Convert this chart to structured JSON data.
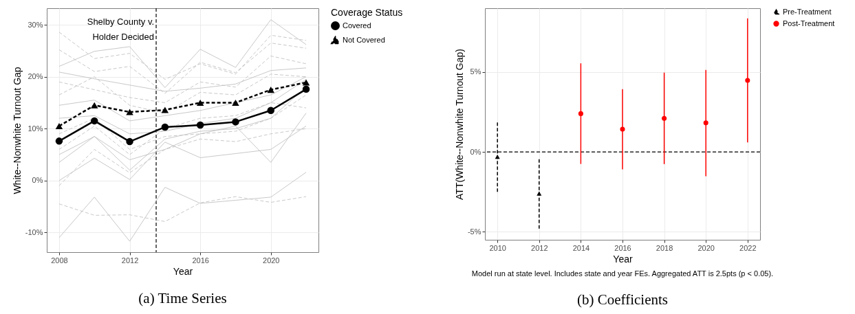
{
  "chart_data": [
    {
      "type": "line",
      "title": "(a)  Time Series",
      "xlabel": "Year",
      "ylabel": "White--Nonwhite Turnout Gap",
      "legend_title": "Coverage Status",
      "legend": "right",
      "grid": true,
      "x": [
        2008,
        2010,
        2012,
        2014,
        2016,
        2018,
        2020,
        2022
      ],
      "xlim": [
        2007.3,
        2022.7
      ],
      "xticks": [
        2008,
        2012,
        2016,
        2020
      ],
      "ylim": [
        -13.8,
        33.2
      ],
      "yticks": [
        {
          "value": -10,
          "label": "-10%"
        },
        {
          "value": 0,
          "label": "0%"
        },
        {
          "value": 10,
          "label": "10%"
        },
        {
          "value": 20,
          "label": "20%"
        },
        {
          "value": 30,
          "label": "30%"
        }
      ],
      "ref_lines": [
        {
          "axis": "x",
          "value": 2013.5,
          "label": "Shelby County v. Holder Decided",
          "line_style": "dashed",
          "color": "#000000"
        }
      ],
      "series": [
        {
          "color": "#bebebe",
          "line_style": "solid",
          "marker": "none",
          "values": [
            22.0,
            24.9,
            25.8,
            17.9,
            25.3,
            21.8,
            31.0,
            26.2
          ]
        },
        {
          "color": "#bebebe",
          "line_style": "solid",
          "marker": "none",
          "values": [
            20.9,
            19.6,
            18.4,
            17.2,
            17.8,
            18.6,
            21.2,
            21.7
          ]
        },
        {
          "color": "#bebebe",
          "line_style": "dashed",
          "marker": "none",
          "values": [
            28.6,
            23.5,
            24.5,
            19.5,
            22.5,
            20.5,
            28.0,
            27.0
          ]
        },
        {
          "color": "#bebebe",
          "line_style": "dashed",
          "marker": "none",
          "values": [
            25.2,
            21.0,
            22.0,
            16.8,
            22.8,
            20.8,
            26.5,
            25.5
          ]
        },
        {
          "color": "#bebebe",
          "line_style": "dashed",
          "marker": "none",
          "values": [
            19.0,
            17.5,
            16.0,
            15.0,
            19.0,
            18.0,
            24.0,
            22.5
          ]
        },
        {
          "color": "#bebebe",
          "line_style": "solid",
          "marker": "none",
          "values": [
            14.5,
            15.5,
            11.5,
            12.5,
            13.5,
            15.0,
            16.5,
            20.0
          ]
        },
        {
          "color": "#bebebe",
          "line_style": "dashed",
          "marker": "none",
          "values": [
            16.5,
            20.0,
            14.5,
            13.0,
            17.0,
            16.5,
            20.5,
            20.0
          ]
        },
        {
          "color": "#bebebe",
          "line_style": "solid",
          "marker": "none",
          "values": [
            12.0,
            12.5,
            9.0,
            9.5,
            11.0,
            12.0,
            15.0,
            19.5
          ]
        },
        {
          "color": "#bebebe",
          "line_style": "dashed",
          "marker": "none",
          "values": [
            9.0,
            12.0,
            6.0,
            8.5,
            9.0,
            9.5,
            12.0,
            16.5
          ]
        },
        {
          "color": "#bebebe",
          "line_style": "solid",
          "marker": "none",
          "values": [
            3.5,
            8.5,
            2.0,
            8.0,
            9.5,
            10.0,
            12.0,
            18.0
          ]
        },
        {
          "color": "#bebebe",
          "line_style": "solid",
          "marker": "none",
          "values": [
            0.0,
            4.3,
            0.2,
            7.4,
            4.4,
            5.2,
            6.0,
            10.5
          ]
        },
        {
          "color": "#bebebe",
          "line_style": "dashed",
          "marker": "none",
          "values": [
            -1.0,
            6.0,
            1.5,
            6.0,
            8.0,
            7.5,
            9.0,
            10.0
          ]
        },
        {
          "color": "#bebebe",
          "line_style": "dashed",
          "marker": "none",
          "values": [
            -4.5,
            -6.7,
            -6.6,
            -7.9,
            -4.3,
            -3.1,
            -4.2,
            -3.1
          ]
        },
        {
          "color": "#bebebe",
          "line_style": "solid",
          "marker": "none",
          "values": [
            -11.0,
            -3.2,
            -11.7,
            -1.3,
            -4.4,
            -3.8,
            -3.2,
            1.6
          ]
        },
        {
          "color": "#bebebe",
          "line_style": "solid",
          "marker": "none",
          "values": [
            5.0,
            8.5,
            4.0,
            6.0,
            9.0,
            10.5,
            3.5,
            13.0
          ]
        },
        {
          "color": "#bebebe",
          "line_style": "dashed",
          "marker": "none",
          "values": [
            6.0,
            10.5,
            5.0,
            10.0,
            12.0,
            12.5,
            15.0,
            14.0
          ]
        },
        {
          "name": "Covered",
          "color": "#000000",
          "line_style": "solid",
          "marker": "circle",
          "values": [
            7.6,
            11.5,
            7.5,
            10.3,
            10.7,
            11.3,
            13.5,
            17.6
          ]
        },
        {
          "name": "Not Covered",
          "color": "#000000",
          "line_style": "dashed",
          "marker": "triangle",
          "values": [
            10.5,
            14.5,
            13.2,
            13.6,
            15.0,
            15.0,
            17.5,
            18.9
          ]
        }
      ]
    },
    {
      "type": "scatter",
      "title": "(b)  Coefficients",
      "xlabel": "Year",
      "ylabel": "ATT(White--Nonwhite Turnout Gap)",
      "legend": "right",
      "grid": true,
      "xlim": [
        2009.4,
        2022.6
      ],
      "xticks": [
        2010,
        2012,
        2014,
        2016,
        2018,
        2020,
        2022
      ],
      "ylim": [
        -5.5,
        9.0
      ],
      "yticks": [
        {
          "value": -5,
          "label": "-5%"
        },
        {
          "value": 0,
          "label": "0%"
        },
        {
          "value": 5,
          "label": "5%"
        }
      ],
      "ref_lines": [
        {
          "axis": "y",
          "value": 0,
          "line_style": "dashed",
          "color": "#000000"
        }
      ],
      "annotations": [
        "Model run at state level. Includes state and year FEs. Aggregated ATT is 2.5pts (p < 0.05)."
      ],
      "series": [
        {
          "name": "Pre-Treatment",
          "color": "#000000",
          "line_style": "dashed",
          "marker": "triangle",
          "x": [
            2010,
            2012
          ],
          "values": [
            -0.3,
            -2.6
          ],
          "errors": [
            [
              -2.5,
              1.85
            ],
            [
              -4.8,
              -0.4
            ]
          ]
        },
        {
          "name": "Post-Treatment",
          "color": "#ff0000",
          "line_style": "solid",
          "marker": "circle",
          "x": [
            2014,
            2016,
            2018,
            2020,
            2022
          ],
          "values": [
            2.4,
            1.43,
            2.1,
            1.82,
            4.48
          ],
          "errors": [
            [
              -0.75,
              5.55
            ],
            [
              -1.09,
              3.93
            ],
            [
              -0.76,
              4.97
            ],
            [
              -1.52,
              5.14
            ],
            [
              0.6,
              8.37
            ]
          ]
        }
      ]
    }
  ]
}
